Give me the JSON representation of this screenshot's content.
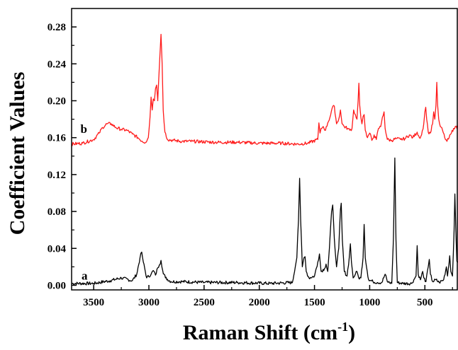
{
  "chart_data": {
    "type": "line",
    "title": "",
    "xlabel": {
      "main": "Raman Shift (cm",
      "sup": "-1",
      "close": ")"
    },
    "ylabel": "Coefficient Values",
    "x_reversed": true,
    "xlim": [
      3700,
      200
    ],
    "ylim": [
      -0.005,
      0.3
    ],
    "x_ticks": [
      3500,
      3000,
      2500,
      2000,
      1500,
      1000,
      500
    ],
    "x_tick_labels": [
      "3500",
      "3000",
      "2500",
      "2000",
      "1500",
      "1000",
      "500"
    ],
    "y_ticks": [
      0.0,
      0.04,
      0.08,
      0.12,
      0.16,
      0.2,
      0.24,
      0.28
    ],
    "y_tick_labels": [
      "0.00",
      "0.04",
      "0.08",
      "0.12",
      "0.16",
      "0.20",
      "0.24",
      "0.28"
    ],
    "grid": false,
    "series": [
      {
        "label": "a",
        "color": "#000000",
        "baseline": 0.002,
        "label_x": 3610,
        "label_y": 0.006,
        "points": [
          [
            3700,
            0.002
          ],
          [
            3500,
            0.002
          ],
          [
            3350,
            0.005
          ],
          [
            3250,
            0.008
          ],
          [
            3150,
            0.005
          ],
          [
            3110,
            0.012
          ],
          [
            3080,
            0.03
          ],
          [
            3065,
            0.036
          ],
          [
            3050,
            0.025
          ],
          [
            3020,
            0.008
          ],
          [
            2980,
            0.012
          ],
          [
            2960,
            0.016
          ],
          [
            2940,
            0.011
          ],
          [
            2920,
            0.019
          ],
          [
            2905,
            0.022
          ],
          [
            2890,
            0.027
          ],
          [
            2875,
            0.016
          ],
          [
            2850,
            0.008
          ],
          [
            2800,
            0.004
          ],
          [
            2700,
            0.004
          ],
          [
            2500,
            0.003
          ],
          [
            2200,
            0.003
          ],
          [
            1900,
            0.002
          ],
          [
            1700,
            0.003
          ],
          [
            1660,
            0.03
          ],
          [
            1645,
            0.07
          ],
          [
            1635,
            0.116
          ],
          [
            1625,
            0.07
          ],
          [
            1610,
            0.02
          ],
          [
            1595,
            0.03
          ],
          [
            1585,
            0.031
          ],
          [
            1575,
            0.015
          ],
          [
            1550,
            0.008
          ],
          [
            1500,
            0.01
          ],
          [
            1470,
            0.025
          ],
          [
            1455,
            0.034
          ],
          [
            1440,
            0.015
          ],
          [
            1410,
            0.018
          ],
          [
            1395,
            0.023
          ],
          [
            1380,
            0.015
          ],
          [
            1365,
            0.04
          ],
          [
            1345,
            0.08
          ],
          [
            1335,
            0.087
          ],
          [
            1320,
            0.05
          ],
          [
            1300,
            0.02
          ],
          [
            1280,
            0.04
          ],
          [
            1265,
            0.082
          ],
          [
            1258,
            0.089
          ],
          [
            1248,
            0.05
          ],
          [
            1230,
            0.015
          ],
          [
            1205,
            0.01
          ],
          [
            1185,
            0.03
          ],
          [
            1175,
            0.045
          ],
          [
            1165,
            0.025
          ],
          [
            1150,
            0.008
          ],
          [
            1130,
            0.012
          ],
          [
            1115,
            0.015
          ],
          [
            1100,
            0.008
          ],
          [
            1080,
            0.008
          ],
          [
            1060,
            0.03
          ],
          [
            1050,
            0.066
          ],
          [
            1040,
            0.03
          ],
          [
            1010,
            0.006
          ],
          [
            970,
            0.004
          ],
          [
            930,
            0.003
          ],
          [
            890,
            0.003
          ],
          [
            860,
            0.012
          ],
          [
            840,
            0.004
          ],
          [
            800,
            0.002
          ],
          [
            785,
            0.05
          ],
          [
            772,
            0.138
          ],
          [
            762,
            0.05
          ],
          [
            750,
            0.003
          ],
          [
            700,
            0.002
          ],
          [
            620,
            0.002
          ],
          [
            580,
            0.01
          ],
          [
            570,
            0.043
          ],
          [
            560,
            0.012
          ],
          [
            540,
            0.006
          ],
          [
            520,
            0.015
          ],
          [
            510,
            0.008
          ],
          [
            490,
            0.004
          ],
          [
            470,
            0.02
          ],
          [
            460,
            0.028
          ],
          [
            450,
            0.012
          ],
          [
            430,
            0.004
          ],
          [
            400,
            0.006
          ],
          [
            370,
            0.003
          ],
          [
            330,
            0.006
          ],
          [
            305,
            0.02
          ],
          [
            295,
            0.01
          ],
          [
            275,
            0.032
          ],
          [
            265,
            0.015
          ],
          [
            250,
            0.01
          ],
          [
            235,
            0.06
          ],
          [
            228,
            0.099
          ],
          [
            220,
            0.06
          ],
          [
            210,
            0.026
          ],
          [
            200,
            0.025
          ]
        ]
      },
      {
        "label": "b",
        "color": "#ff1a1a",
        "baseline": 0.153,
        "label_x": 3620,
        "label_y": 0.165,
        "points": [
          [
            3700,
            0.153
          ],
          [
            3600,
            0.154
          ],
          [
            3500,
            0.158
          ],
          [
            3450,
            0.165
          ],
          [
            3420,
            0.171
          ],
          [
            3380,
            0.175
          ],
          [
            3340,
            0.175
          ],
          [
            3300,
            0.171
          ],
          [
            3250,
            0.169
          ],
          [
            3200,
            0.168
          ],
          [
            3150,
            0.164
          ],
          [
            3100,
            0.16
          ],
          [
            3060,
            0.156
          ],
          [
            3030,
            0.155
          ],
          [
            3005,
            0.16
          ],
          [
            2990,
            0.182
          ],
          [
            2980,
            0.204
          ],
          [
            2970,
            0.19
          ],
          [
            2960,
            0.202
          ],
          [
            2950,
            0.2
          ],
          [
            2940,
            0.213
          ],
          [
            2930,
            0.217
          ],
          [
            2920,
            0.2
          ],
          [
            2910,
            0.225
          ],
          [
            2900,
            0.25
          ],
          [
            2890,
            0.272
          ],
          [
            2880,
            0.24
          ],
          [
            2870,
            0.19
          ],
          [
            2855,
            0.166
          ],
          [
            2830,
            0.158
          ],
          [
            2780,
            0.157
          ],
          [
            2700,
            0.156
          ],
          [
            2600,
            0.156
          ],
          [
            2400,
            0.155
          ],
          [
            2200,
            0.155
          ],
          [
            2000,
            0.154
          ],
          [
            1800,
            0.154
          ],
          [
            1650,
            0.153
          ],
          [
            1560,
            0.154
          ],
          [
            1470,
            0.158
          ],
          [
            1460,
            0.176
          ],
          [
            1450,
            0.165
          ],
          [
            1440,
            0.17
          ],
          [
            1420,
            0.172
          ],
          [
            1400,
            0.168
          ],
          [
            1380,
            0.176
          ],
          [
            1360,
            0.182
          ],
          [
            1340,
            0.192
          ],
          [
            1320,
            0.194
          ],
          [
            1300,
            0.175
          ],
          [
            1280,
            0.18
          ],
          [
            1265,
            0.19
          ],
          [
            1250,
            0.175
          ],
          [
            1230,
            0.172
          ],
          [
            1200,
            0.17
          ],
          [
            1180,
            0.168
          ],
          [
            1160,
            0.17
          ],
          [
            1145,
            0.19
          ],
          [
            1130,
            0.185
          ],
          [
            1115,
            0.18
          ],
          [
            1105,
            0.2
          ],
          [
            1098,
            0.219
          ],
          [
            1090,
            0.195
          ],
          [
            1080,
            0.182
          ],
          [
            1070,
            0.175
          ],
          [
            1060,
            0.183
          ],
          [
            1050,
            0.185
          ],
          [
            1040,
            0.168
          ],
          [
            1020,
            0.16
          ],
          [
            1000,
            0.165
          ],
          [
            980,
            0.157
          ],
          [
            960,
            0.163
          ],
          [
            940,
            0.158
          ],
          [
            920,
            0.17
          ],
          [
            900,
            0.172
          ],
          [
            885,
            0.182
          ],
          [
            870,
            0.188
          ],
          [
            860,
            0.17
          ],
          [
            840,
            0.158
          ],
          [
            800,
            0.157
          ],
          [
            760,
            0.159
          ],
          [
            720,
            0.158
          ],
          [
            680,
            0.159
          ],
          [
            640,
            0.163
          ],
          [
            610,
            0.16
          ],
          [
            570,
            0.166
          ],
          [
            550,
            0.16
          ],
          [
            530,
            0.163
          ],
          [
            510,
            0.175
          ],
          [
            500,
            0.188
          ],
          [
            492,
            0.193
          ],
          [
            484,
            0.18
          ],
          [
            470,
            0.166
          ],
          [
            450,
            0.165
          ],
          [
            430,
            0.175
          ],
          [
            420,
            0.188
          ],
          [
            410,
            0.18
          ],
          [
            400,
            0.195
          ],
          [
            392,
            0.22
          ],
          [
            384,
            0.195
          ],
          [
            375,
            0.18
          ],
          [
            360,
            0.172
          ],
          [
            340,
            0.168
          ],
          [
            320,
            0.16
          ],
          [
            300,
            0.156
          ],
          [
            280,
            0.16
          ],
          [
            260,
            0.165
          ],
          [
            240,
            0.17
          ],
          [
            225,
            0.172
          ],
          [
            210,
            0.17
          ],
          [
            200,
            0.173
          ]
        ]
      }
    ]
  }
}
